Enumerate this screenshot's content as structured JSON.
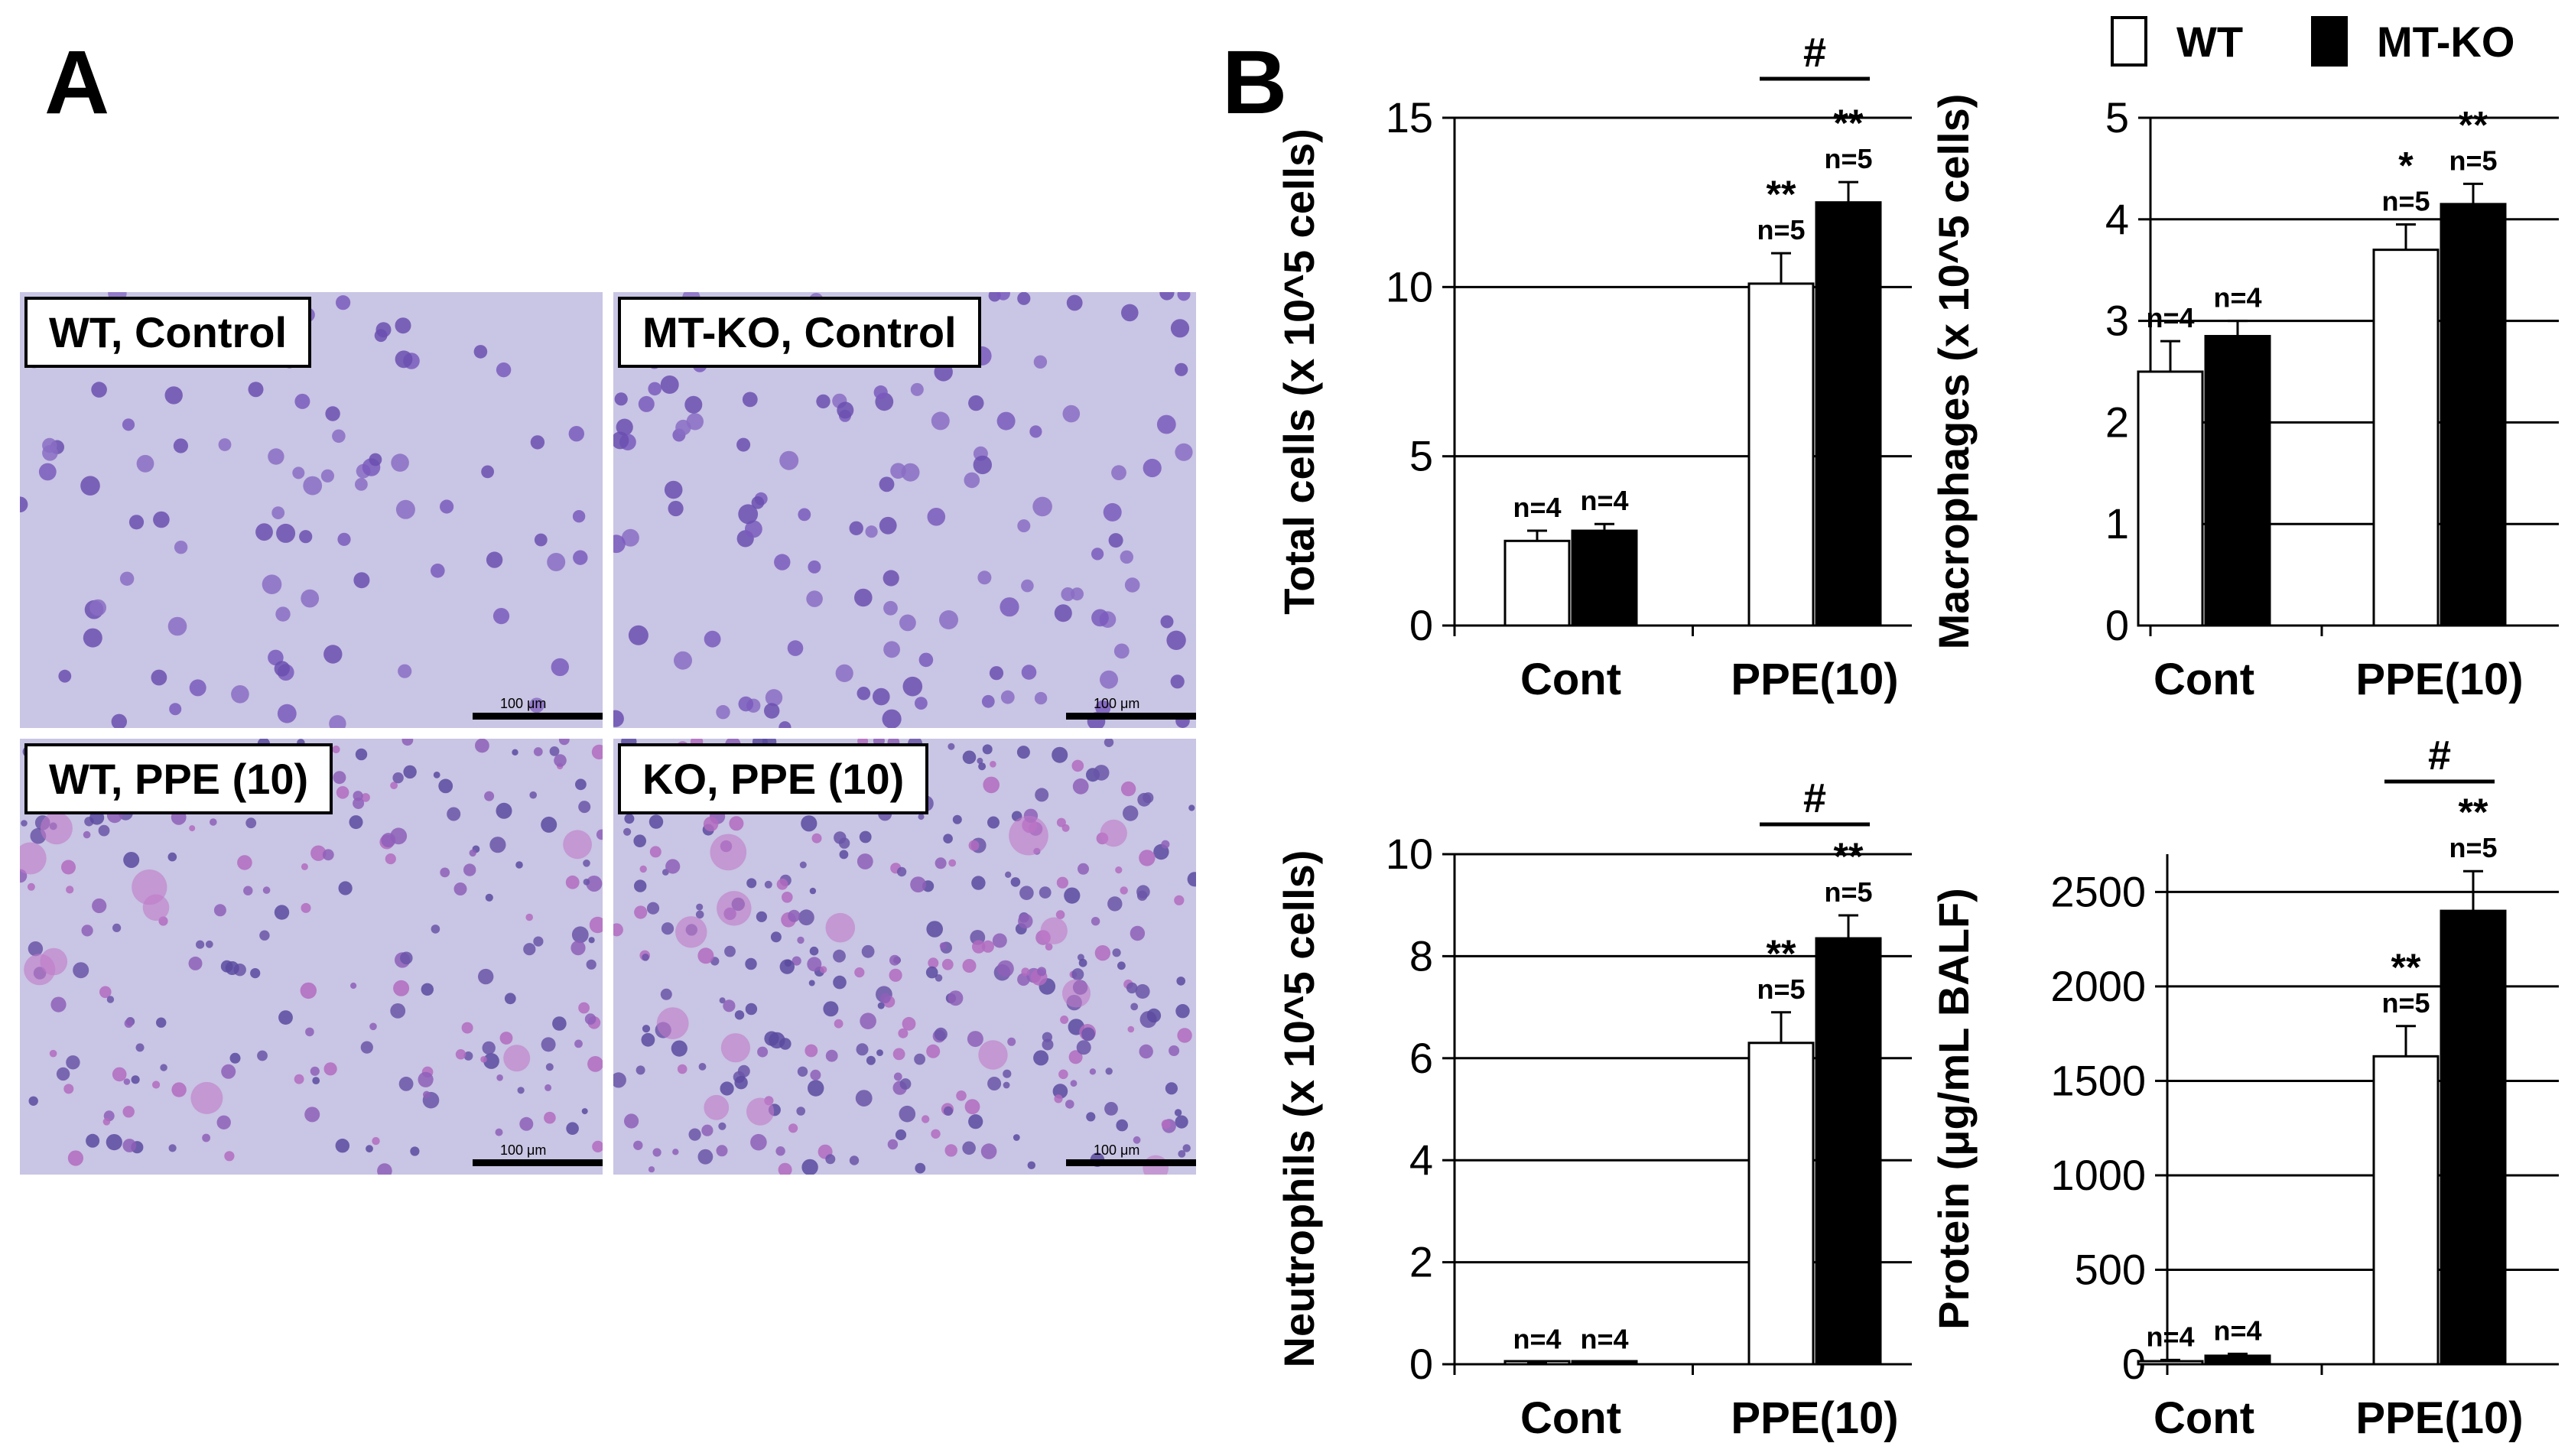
{
  "panel_letters": {
    "a": "A",
    "b": "B"
  },
  "micrographs": [
    {
      "label": "WT, Control",
      "scale_text": "100 μm"
    },
    {
      "label": "MT-KO, Control",
      "scale_text": "100 μm"
    },
    {
      "label": "WT, PPE (10)",
      "scale_text": "100 μm"
    },
    {
      "label": "KO, PPE (10)",
      "scale_text": "100 μm"
    }
  ],
  "colors": {
    "wt": "#ffffff",
    "ko": "#000000",
    "axis": "#000000",
    "micro_bg": "#c9c5e4"
  },
  "legend": [
    {
      "name": "WT",
      "color": "#ffffff"
    },
    {
      "name": "MT-KO",
      "color": "#000000"
    }
  ],
  "chart_data": [
    {
      "type": "bar",
      "ylabel": "Total cells (x 10^5 cells)",
      "ylim": [
        0,
        15
      ],
      "yticks": [
        0,
        5,
        10,
        15
      ],
      "grid": true,
      "categories": [
        "Cont",
        "PPE(10)"
      ],
      "series": [
        {
          "name": "WT",
          "values": [
            2.5,
            10.1
          ],
          "errors": [
            0.3,
            0.9
          ]
        },
        {
          "name": "MT-KO",
          "values": [
            2.8,
            12.5
          ],
          "errors": [
            0.2,
            0.6
          ]
        }
      ],
      "annotations": {
        "n_labels": [
          [
            "n=4",
            "n=5"
          ],
          [
            "n=4",
            "n=5"
          ]
        ],
        "stars": [
          [
            "",
            "**"
          ],
          [
            "",
            "**"
          ]
        ],
        "hash": "#"
      }
    },
    {
      "type": "bar",
      "ylabel": "Macrophages (x 10^5 cells)",
      "ylim": [
        0,
        5
      ],
      "yticks": [
        0,
        1,
        2,
        3,
        4,
        5
      ],
      "grid": true,
      "categories": [
        "Cont",
        "PPE(10)"
      ],
      "series": [
        {
          "name": "WT",
          "values": [
            2.5,
            3.7
          ],
          "errors": [
            0.3,
            0.25
          ]
        },
        {
          "name": "MT-KO",
          "values": [
            2.85,
            4.15
          ],
          "errors": [
            0.15,
            0.2
          ]
        }
      ],
      "annotations": {
        "n_labels": [
          [
            "n=4",
            "n=5"
          ],
          [
            "n=4",
            "n=5"
          ]
        ],
        "stars": [
          [
            "",
            "*"
          ],
          [
            "",
            "**"
          ]
        ],
        "hash": ""
      }
    },
    {
      "type": "bar",
      "ylabel": "Neutrophils (x 10^5 cells)",
      "ylim": [
        0,
        10
      ],
      "yticks": [
        0,
        2,
        4,
        6,
        8,
        10
      ],
      "grid": true,
      "categories": [
        "Cont",
        "PPE(10)"
      ],
      "series": [
        {
          "name": "WT",
          "values": [
            0.03,
            6.3
          ],
          "errors": [
            0.01,
            0.6
          ]
        },
        {
          "name": "MT-KO",
          "values": [
            0.03,
            8.35
          ],
          "errors": [
            0.01,
            0.45
          ]
        }
      ],
      "annotations": {
        "n_labels": [
          [
            "n=4",
            "n=5"
          ],
          [
            "n=4",
            "n=5"
          ]
        ],
        "stars": [
          [
            "",
            "**"
          ],
          [
            "",
            "**"
          ]
        ],
        "hash": "#"
      }
    },
    {
      "type": "bar",
      "ylabel": "Protein (μg/mL BALF)",
      "ylim": [
        0,
        2700
      ],
      "yticks": [
        0,
        500,
        1000,
        1500,
        2000,
        2500
      ],
      "grid": true,
      "categories": [
        "Cont",
        "PPE(10)"
      ],
      "series": [
        {
          "name": "WT",
          "values": [
            15,
            1630
          ],
          "errors": [
            8,
            160
          ]
        },
        {
          "name": "MT-KO",
          "values": [
            45,
            2400
          ],
          "errors": [
            10,
            210
          ]
        }
      ],
      "annotations": {
        "n_labels": [
          [
            "n=4",
            "n=5"
          ],
          [
            "n=4",
            "n=5"
          ]
        ],
        "stars": [
          [
            "",
            "**"
          ],
          [
            "",
            "**"
          ]
        ],
        "hash": "#"
      }
    }
  ]
}
